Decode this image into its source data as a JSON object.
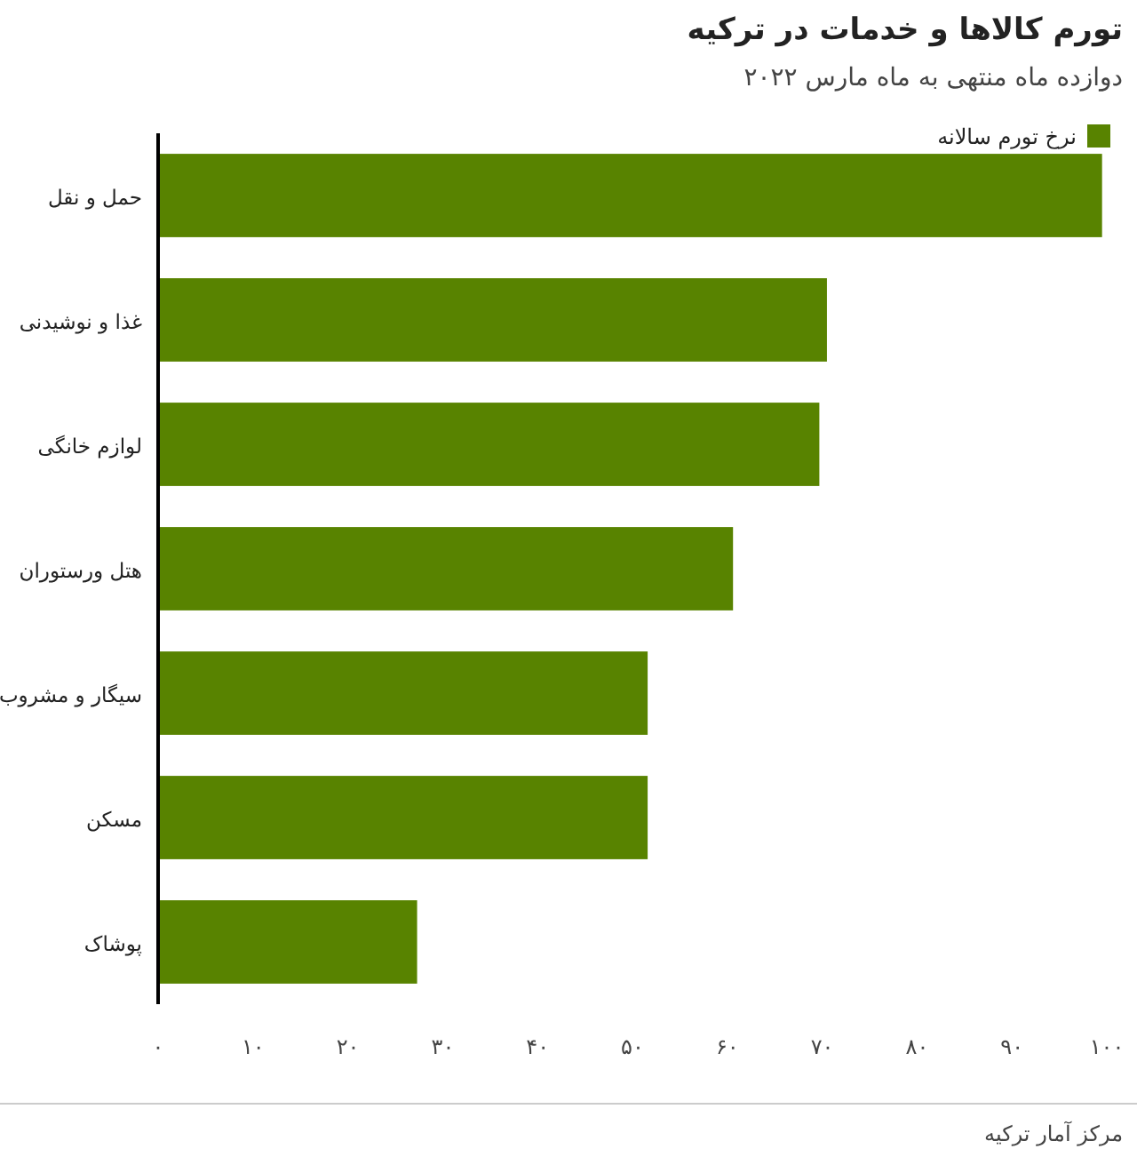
{
  "chart_data": {
    "type": "bar",
    "orientation": "horizontal",
    "title": "تورم کالاها و خدمات در ترکیه",
    "subtitle": "دوازده ماه منتهی به ماه مارس ۲۰۲۲",
    "categories": [
      "حمل و نقل",
      "غذا و نوشیدنی",
      "لوازم خانگی",
      "هتل ورستوران",
      "سیگار و مشروب",
      "مسکن",
      "پوشاک"
    ],
    "series": [
      {
        "name": "نرخ تورم سالانه",
        "color": "#588300",
        "values": [
          99.5,
          70.5,
          69.7,
          60.6,
          51.6,
          51.6,
          27.3
        ]
      }
    ],
    "xlim": [
      0,
      100
    ],
    "xticks": [
      {
        "value": 0,
        "label": "۰"
      },
      {
        "value": 10,
        "label": "۱۰"
      },
      {
        "value": 20,
        "label": "۲۰"
      },
      {
        "value": 30,
        "label": "۳۰"
      },
      {
        "value": 40,
        "label": "۴۰"
      },
      {
        "value": 50,
        "label": "۵۰"
      },
      {
        "value": 60,
        "label": "۶۰"
      },
      {
        "value": 70,
        "label": "۷۰"
      },
      {
        "value": 80,
        "label": "۸۰"
      },
      {
        "value": 90,
        "label": "۹۰"
      },
      {
        "value": 100,
        "label": "۱۰۰"
      }
    ],
    "legend": "top right",
    "annotations": [
      "مرکز آمار ترکیه"
    ]
  }
}
